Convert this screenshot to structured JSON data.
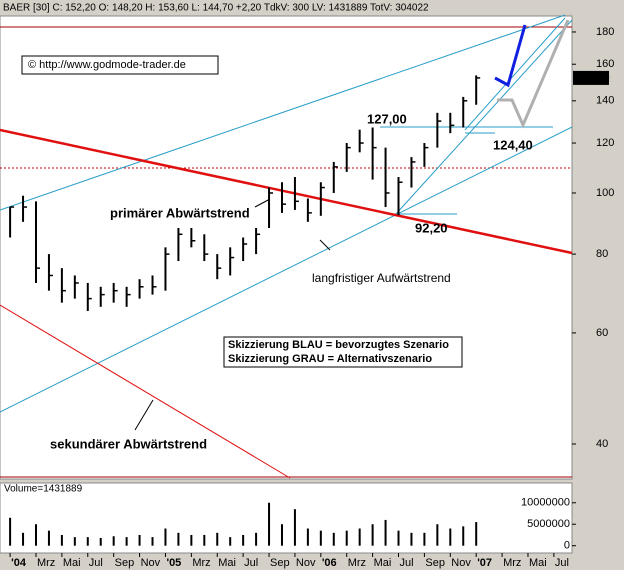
{
  "header": "BAER [30] C: 152,20 O: 148,20 H: 153,60 L: 144,70 +2,20 TdkV: 300 LV: 1431889 TotV: 304022",
  "chart_data": [
    {
      "type": "ohlc",
      "x": [
        0,
        1,
        2,
        3,
        4,
        5,
        6,
        7,
        8,
        9,
        10,
        11,
        12,
        13,
        14,
        15,
        16,
        17,
        18,
        19,
        20,
        21,
        22,
        23,
        24,
        25,
        26,
        27,
        28,
        29,
        30,
        31,
        32,
        33,
        34,
        35,
        36
      ],
      "high": [
        95,
        99,
        97,
        80,
        76,
        74,
        72,
        71,
        72,
        71,
        73,
        74,
        82,
        88,
        88,
        86,
        80,
        82,
        85,
        88,
        102,
        104,
        106,
        98,
        104,
        112,
        120,
        126,
        127,
        118,
        106,
        114,
        120,
        134,
        134,
        142,
        153.6
      ],
      "low": [
        85,
        90,
        72,
        70,
        67,
        68,
        65,
        66,
        67,
        66,
        68,
        69,
        70,
        78,
        82,
        78,
        73,
        74,
        78,
        80,
        88,
        93,
        94,
        90,
        92,
        100,
        108,
        116,
        105,
        95,
        92.2,
        102,
        110,
        118,
        124.4,
        127,
        138
      ],
      "close": [
        95,
        95,
        76,
        74,
        70,
        72,
        68,
        69,
        70,
        69,
        71,
        71,
        80,
        86,
        84,
        80,
        76,
        79,
        83,
        86,
        100,
        96,
        97,
        93,
        102,
        110,
        118,
        120,
        118,
        100,
        104,
        112,
        118,
        130,
        128,
        140,
        152.2
      ],
      "color": "#000000",
      "ylim": [
        35.2,
        190.8
      ],
      "log": true,
      "yticks": [
        40,
        60,
        80,
        100,
        120,
        140,
        160,
        180
      ],
      "xlim": [
        -0.78,
        43.4
      ],
      "xticks": [
        {
          "value": 0,
          "label": "'04"
        },
        {
          "value": 2,
          "label": "Mrz"
        },
        {
          "value": 4,
          "label": "Mai"
        },
        {
          "value": 6,
          "label": "Jul"
        },
        {
          "value": 8,
          "label": "Sep"
        },
        {
          "value": 10,
          "label": "Nov"
        },
        {
          "value": 12,
          "label": "'05"
        },
        {
          "value": 14,
          "label": "Mrz"
        },
        {
          "value": 16,
          "label": "Mai"
        },
        {
          "value": 18,
          "label": "Jul"
        },
        {
          "value": 20,
          "label": "Sep"
        },
        {
          "value": 22,
          "label": "Nov"
        },
        {
          "value": 24,
          "label": "'06"
        },
        {
          "value": 26,
          "label": "Mrz"
        },
        {
          "value": 28,
          "label": "Mai"
        },
        {
          "value": 30,
          "label": "Jul"
        },
        {
          "value": 32,
          "label": "Sep"
        },
        {
          "value": 34,
          "label": "Nov"
        },
        {
          "value": 36,
          "label": "'07"
        },
        {
          "value": 38,
          "label": "Mrz"
        },
        {
          "value": 40,
          "label": "Mai"
        },
        {
          "value": 42,
          "label": "Jul"
        }
      ],
      "last_price": {
        "value": 152.2,
        "label": "152,20"
      },
      "copyright": "© http://www.godmode-trader.de",
      "annotations": [
        "127,00",
        "124,40",
        "92,20",
        "primärer Abwärtstrend",
        "langfristiger Aufwärtstrend",
        "sekundärer Abwärtstrend"
      ],
      "scenario_notes": [
        "Skizzierung BLAU = bevorzugtes Szenario",
        "Skizzierung GRAU = Alternativszenario"
      ]
    },
    {
      "type": "volume",
      "title": "Volume=1431889",
      "x": [
        0,
        1,
        2,
        3,
        4,
        5,
        6,
        7,
        8,
        9,
        10,
        11,
        12,
        13,
        14,
        15,
        16,
        17,
        18,
        19,
        20,
        21,
        22,
        23,
        24,
        25,
        26,
        27,
        28,
        29,
        30,
        31,
        32,
        33,
        34,
        35,
        36
      ],
      "values": [
        6500000,
        3000000,
        5000000,
        3500000,
        2500000,
        2000000,
        2000000,
        1800000,
        2200000,
        2000000,
        2500000,
        2000000,
        4000000,
        3000000,
        2500000,
        2500000,
        3000000,
        2000000,
        2500000,
        3000000,
        10000000,
        5000000,
        8500000,
        4000000,
        3500000,
        3000000,
        3500000,
        4000000,
        5000000,
        6000000,
        3500000,
        3000000,
        3000000,
        5000000,
        4000000,
        4500000,
        5500000
      ],
      "color": "#000000",
      "ylim": [
        -1700000,
        14600000
      ],
      "yticks": [
        0,
        5000000,
        10000000
      ]
    }
  ]
}
